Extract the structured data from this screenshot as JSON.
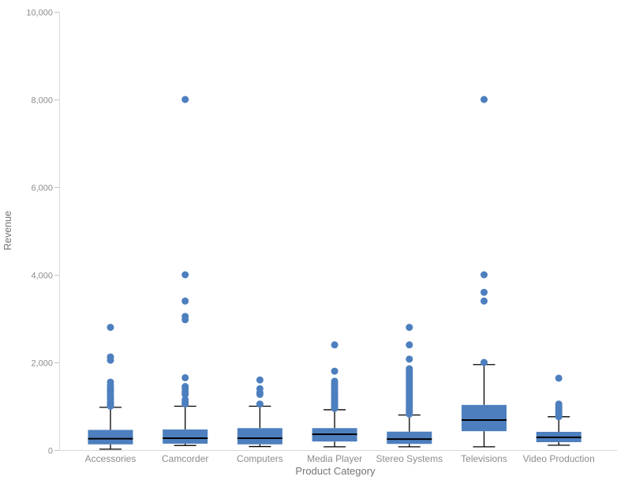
{
  "colors": {
    "box_fill": "#4d7fbe",
    "median_line": "#000000",
    "whisker_line": "#000000",
    "axis_line": "#d9d9d9",
    "tick_mark": "#c4c4c4",
    "tick_label": "#8c8c8c",
    "axis_title": "#757575",
    "background": "#ffffff"
  },
  "chart_data": {
    "type": "boxplot",
    "title": "",
    "xlabel": "Product Category",
    "ylabel": "Revenue",
    "ylim": [
      0,
      10000
    ],
    "yticks": [
      0,
      2000,
      4000,
      6000,
      8000,
      10000
    ],
    "ytick_labels": [
      "0",
      "2,000",
      "4,000",
      "6,000",
      "8,000",
      "10,000"
    ],
    "grid": false,
    "legend": "none",
    "categories": [
      "Accessories",
      "Camcorder",
      "Computers",
      "Media Player",
      "Stereo Systems",
      "Televisions",
      "Video Production"
    ],
    "series": [
      {
        "name": "Accessories",
        "whisker_low": 20,
        "q1": 130,
        "median": 260,
        "q3": 460,
        "whisker_high": 975,
        "outliers": [
          2800,
          2125,
          2050,
          1550,
          1475,
          1425,
          1375,
          1350,
          1300,
          1250,
          1200,
          1175,
          1150,
          1100,
          1075,
          1050,
          1025,
          1000
        ]
      },
      {
        "name": "Camcorder",
        "whisker_low": 105,
        "q1": 145,
        "median": 270,
        "q3": 470,
        "whisker_high": 1000,
        "outliers": [
          8000,
          4000,
          3400,
          3050,
          2975,
          1650,
          1450,
          1400,
          1330,
          1300,
          1270,
          1150,
          1110,
          1080,
          1050
        ]
      },
      {
        "name": "Computers",
        "whisker_low": 80,
        "q1": 130,
        "median": 270,
        "q3": 500,
        "whisker_high": 1000,
        "outliers": [
          1600,
          1400,
          1310,
          1270,
          1050
        ]
      },
      {
        "name": "Media Player",
        "whisker_low": 75,
        "q1": 195,
        "median": 360,
        "q3": 500,
        "whisker_high": 920,
        "outliers": [
          2400,
          1800,
          1570,
          1520,
          1480,
          1440,
          1400,
          1370,
          1340,
          1310,
          1280,
          1250,
          1220,
          1190,
          1160,
          1130,
          1100,
          1070,
          1040,
          1010,
          980,
          950
        ]
      },
      {
        "name": "Stereo Systems",
        "whisker_low": 75,
        "q1": 140,
        "median": 250,
        "q3": 420,
        "whisker_high": 800,
        "outliers": [
          2800,
          2400,
          2075,
          1855,
          1810,
          1770,
          1730,
          1690,
          1650,
          1610,
          1570,
          1530,
          1490,
          1450,
          1410,
          1370,
          1330,
          1290,
          1250,
          1210,
          1170,
          1130,
          1090,
          1050,
          1010,
          970,
          930,
          890,
          850,
          820
        ]
      },
      {
        "name": "Televisions",
        "whisker_low": 75,
        "q1": 430,
        "median": 685,
        "q3": 1030,
        "whisker_high": 1950,
        "outliers": [
          8000,
          4000,
          3600,
          3400,
          2000
        ]
      },
      {
        "name": "Video Production",
        "whisker_low": 110,
        "q1": 180,
        "median": 290,
        "q3": 415,
        "whisker_high": 760,
        "outliers": [
          1640,
          1050,
          1010,
          970,
          930,
          890,
          855,
          820,
          790,
          760
        ]
      }
    ]
  }
}
